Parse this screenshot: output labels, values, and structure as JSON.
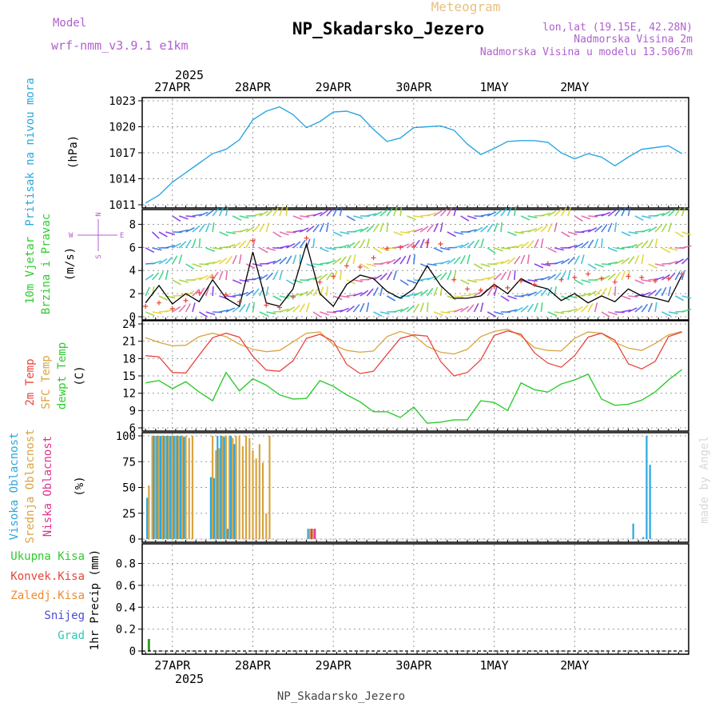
{
  "header": {
    "app_title": "Meteogram",
    "station": "NP_Skadarsko_Jezero",
    "model_label": "Model",
    "model_name": "wrf-nmm_v3.9.1 e1km",
    "lonlat": "lon,lat (19.15E, 42.28N)",
    "elevation": "Nadmorska Visina 2m",
    "model_elevation": "Nadmorska Visina u modelu 13.5067m",
    "footer_station": "NP_Skadarsko_Jezero",
    "watermark": "made by Angel"
  },
  "colors": {
    "pressure": "#2aa7e0",
    "temp2m": "#e8453c",
    "sfc_temp": "#d9a441",
    "dewpoint": "#2ecc2e",
    "cloud_high": "#2aa7e0",
    "cloud_mid": "#d9a441",
    "cloud_low": "#e0338a",
    "rain_total": "#2ecc2e",
    "rain_conv": "#e8453c",
    "rain_strat": "#f08a30",
    "snow": "#4a4ad8",
    "hail": "#2ec9b5",
    "wind_speed": "#000000",
    "wind_gust": "#e8453c",
    "label_purple": "#b060d0",
    "title_gold": "#e8c080"
  },
  "chart_data": [
    {
      "type": "line",
      "panel": "pressure",
      "xlabel_dates": [
        "27APR",
        "28APR",
        "29APR",
        "30APR",
        "1MAY",
        "2MAY"
      ],
      "year": "2025",
      "ylabel": "(hPa)",
      "side_label": "Pritisak na nivou mora",
      "yticks": [
        "1011",
        "1014",
        "1017",
        "1020",
        "1023"
      ],
      "ylim": [
        1011,
        1023
      ],
      "grid": true,
      "x_hours": [
        -8,
        -4,
        0,
        4,
        8,
        12,
        16,
        20,
        24,
        28,
        32,
        36,
        40,
        44,
        48,
        52,
        56,
        60,
        64,
        68,
        72,
        76,
        80,
        84,
        88,
        92,
        96,
        100,
        104,
        108,
        112,
        116,
        120,
        124,
        128,
        132,
        136,
        140,
        144,
        148,
        152
      ],
      "series": [
        {
          "values": [
            1011.2,
            1012.1,
            1013.6,
            1014.7,
            1015.8,
            1016.9,
            1017.4,
            1018.5,
            1020.8,
            1021.8,
            1022.3,
            1021.4,
            1019.9,
            1020.6,
            1021.7,
            1021.8,
            1021.3,
            1019.7,
            1018.3,
            1018.7,
            1019.9,
            1020.0,
            1020.1,
            1019.6,
            1018.0,
            1016.8,
            1017.5,
            1018.3,
            1018.4,
            1018.4,
            1018.2,
            1017.0,
            1016.3,
            1016.9,
            1016.5,
            1015.5,
            1016.5,
            1017.4,
            1017.6,
            1017.8,
            1016.9
          ]
        }
      ]
    },
    {
      "type": "line",
      "panel": "wind",
      "ylabel": "(m/s)",
      "side_label": [
        "10m Vjetar",
        "Brzina i Pravac"
      ],
      "compass": [
        "W",
        "E",
        "N",
        "S"
      ],
      "yticks": [
        "0",
        "2",
        "4",
        "6",
        "8"
      ],
      "ylim": [
        0,
        9
      ],
      "grid": true,
      "x_hours": [
        -8,
        -4,
        0,
        4,
        8,
        12,
        16,
        20,
        24,
        28,
        32,
        36,
        40,
        44,
        48,
        52,
        56,
        60,
        64,
        68,
        72,
        76,
        80,
        84,
        88,
        92,
        96,
        100,
        104,
        108,
        112,
        116,
        120,
        124,
        128,
        132,
        136,
        140,
        144,
        148,
        152
      ],
      "series": [
        {
          "name": "speed",
          "values": [
            1.2,
            2.7,
            1.1,
            2.0,
            1.3,
            3.2,
            1.6,
            0.9,
            5.6,
            1.2,
            0.9,
            2.4,
            6.3,
            2.0,
            0.9,
            2.8,
            3.6,
            3.3,
            2.2,
            1.6,
            2.4,
            4.4,
            2.7,
            1.6,
            1.6,
            1.8,
            2.8,
            2.0,
            3.3,
            2.7,
            2.4,
            1.4,
            2.0,
            1.2,
            1.8,
            1.3,
            2.4,
            1.8,
            1.6,
            1.3,
            3.6
          ]
        },
        {
          "name": "gust",
          "values": [
            0.9,
            1.2,
            0.7,
            1.4,
            2.1,
            3.4,
            1.9,
            1.3,
            6.6,
            1.0,
            0.8,
            1.7,
            6.8,
            3.0,
            3.5,
            4.4,
            4.3,
            5.1,
            5.9,
            6.0,
            6.1,
            6.4,
            6.3,
            3.2,
            2.4,
            2.3,
            2.6,
            2.5,
            3.1,
            2.8,
            4.6,
            3.2,
            3.4,
            3.7,
            3.3,
            3.0,
            3.5,
            3.4,
            3.1,
            3.3,
            3.7
          ]
        }
      ]
    },
    {
      "type": "line",
      "panel": "temperature",
      "ylabel": "(C)",
      "side_labels": [
        "2m Temp",
        "SFC Temp",
        "dewpt Temp"
      ],
      "yticks": [
        "6",
        "9",
        "12",
        "15",
        "18",
        "21",
        "24"
      ],
      "ylim": [
        6,
        24
      ],
      "grid": true,
      "x_hours": [
        -8,
        -4,
        0,
        4,
        8,
        12,
        16,
        20,
        24,
        28,
        32,
        36,
        40,
        44,
        48,
        52,
        56,
        60,
        64,
        68,
        72,
        76,
        80,
        84,
        88,
        92,
        96,
        100,
        104,
        108,
        112,
        116,
        120,
        124,
        128,
        132,
        136,
        140,
        144,
        148,
        152
      ],
      "series": [
        {
          "values": [
            18.5,
            18.3,
            15.6,
            15.5,
            18.6,
            21.6,
            22.4,
            21.7,
            18.4,
            16.0,
            15.8,
            17.6,
            21.5,
            22.2,
            21.0,
            17.0,
            15.4,
            15.8,
            18.7,
            21.5,
            22.1,
            21.9,
            17.5,
            15.0,
            15.6,
            17.8,
            22.0,
            22.8,
            22.2,
            19.0,
            17.2,
            16.5,
            18.5,
            21.7,
            22.4,
            21.2,
            17.1,
            16.2,
            17.5,
            21.8,
            22.6
          ]
        },
        {
          "values": [
            21.6,
            20.8,
            20.2,
            20.3,
            21.8,
            22.4,
            21.8,
            20.5,
            19.6,
            19.2,
            19.4,
            20.9,
            22.4,
            22.6,
            20.4,
            19.4,
            19.1,
            19.3,
            21.8,
            22.7,
            22.0,
            20.1,
            19.1,
            18.8,
            19.6,
            21.8,
            22.7,
            23.1,
            21.9,
            19.9,
            19.4,
            19.3,
            21.5,
            22.6,
            22.4,
            20.8,
            19.8,
            19.4,
            20.6,
            22.1,
            22.7
          ]
        },
        {
          "values": [
            13.8,
            14.2,
            12.8,
            14.0,
            12.2,
            10.7,
            15.6,
            12.4,
            14.5,
            13.4,
            11.7,
            11.0,
            11.1,
            14.2,
            13.2,
            11.7,
            10.5,
            8.8,
            8.8,
            7.8,
            9.6,
            6.8,
            7.0,
            7.4,
            7.4,
            10.7,
            10.4,
            9.0,
            13.8,
            12.6,
            12.2,
            13.6,
            14.3,
            15.3,
            11.0,
            9.9,
            10.1,
            10.8,
            12.2,
            14.3,
            16.1
          ]
        }
      ]
    },
    {
      "type": "bar",
      "panel": "clouds",
      "ylabel": "(%)",
      "side_labels": [
        "Visoka Oblacnost",
        "Srednja Oblacnost",
        "Niska Oblacnost"
      ],
      "yticks": [
        "0",
        "25",
        "50",
        "75",
        "100"
      ],
      "ylim": [
        0,
        100
      ],
      "grid": true,
      "x_hours": [
        -7,
        -6,
        -5,
        -4,
        -3,
        -2,
        -1,
        0,
        1,
        2,
        3,
        4,
        5,
        6,
        12,
        13,
        14,
        15,
        16,
        17,
        18,
        19,
        20,
        21,
        22,
        23,
        24,
        25,
        26,
        27,
        28,
        29,
        41,
        42,
        138,
        141,
        142,
        143
      ],
      "series": [
        {
          "name": "high",
          "values": [
            40,
            0,
            100,
            100,
            100,
            100,
            100,
            100,
            100,
            100,
            100,
            99,
            0,
            0,
            60,
            59,
            100,
            100,
            99,
            10,
            100,
            92,
            0,
            0,
            0,
            0,
            0,
            0,
            0,
            0,
            0,
            0,
            10,
            0,
            15,
            2,
            100,
            72
          ]
        },
        {
          "name": "mid",
          "values": [
            52,
            100,
            100,
            100,
            100,
            100,
            100,
            100,
            100,
            100,
            100,
            100,
            98,
            100,
            100,
            86,
            88,
            100,
            100,
            100,
            98,
            100,
            100,
            90,
            100,
            98,
            86,
            78,
            92,
            74,
            25,
            100,
            10,
            10,
            0,
            0,
            0,
            0
          ]
        },
        {
          "name": "low",
          "values": [
            0,
            0,
            0,
            0,
            0,
            0,
            0,
            0,
            0,
            0,
            0,
            0,
            0,
            0,
            0,
            0,
            0,
            0,
            0,
            0,
            0,
            0,
            0,
            0,
            0,
            0,
            0,
            0,
            0,
            0,
            0,
            0,
            10,
            10,
            0,
            0,
            0,
            0
          ]
        }
      ]
    },
    {
      "type": "bar",
      "panel": "precipitation",
      "ylabel": "1hr Precip (mm)",
      "legend": [
        "Ukupna Kisa",
        "Konvek.Kisa",
        "Zaledj.Kisa",
        "Snijeg",
        "Grad"
      ],
      "yticks": [
        "0",
        "0.2",
        "0.4",
        "0.6",
        "0.8"
      ],
      "ylim": [
        0,
        0.95
      ],
      "grid": true,
      "xlabel_dates": [
        "27APR",
        "28APR",
        "29APR",
        "30APR",
        "1MAY",
        "2MAY"
      ],
      "year": "2025",
      "x_hours": [
        -7
      ],
      "series": [
        {
          "name": "Ukupna Kisa",
          "values": [
            0.11
          ]
        }
      ]
    }
  ]
}
